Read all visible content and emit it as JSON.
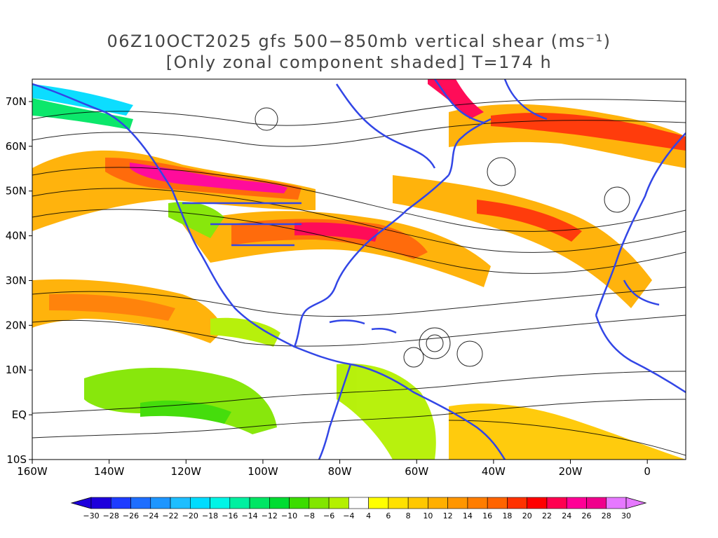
{
  "title": {
    "line1": "06Z10OCT2025 gfs 500−850mb vertical shear (ms⁻¹)",
    "line2": "[Only zonal component shaded] T=174 h"
  },
  "axes": {
    "x_ticks": [
      "160W",
      "140W",
      "120W",
      "100W",
      "80W",
      "60W",
      "40W",
      "20W",
      "0"
    ],
    "y_ticks": [
      "70N",
      "60N",
      "50N",
      "40N",
      "30N",
      "20N",
      "10N",
      "EQ",
      "10S"
    ]
  },
  "map_extent": {
    "lon_min": -160,
    "lon_max": 10,
    "lat_min": -10,
    "lat_max": 75
  },
  "colorbar": {
    "labels": [
      "−30",
      "−28",
      "−26",
      "−24",
      "−22",
      "−20",
      "−18",
      "−16",
      "−14",
      "−12",
      "−10",
      "−8",
      "−6",
      "−4",
      "4",
      "6",
      "8",
      "10",
      "12",
      "14",
      "16",
      "18",
      "20",
      "22",
      "24",
      "26",
      "28",
      "30"
    ],
    "colors": [
      "#1e00dc",
      "#1e3cff",
      "#1e6eff",
      "#1e96ff",
      "#1ebeff",
      "#00dcff",
      "#00f5e6",
      "#00f0a0",
      "#00e664",
      "#00dc32",
      "#3cdc00",
      "#82e600",
      "#b4f000",
      "#ffffff",
      "#ffff00",
      "#ffe100",
      "#ffc800",
      "#ffaf00",
      "#ff9600",
      "#ff7d00",
      "#ff6400",
      "#ff3200",
      "#ff0000",
      "#ff0050",
      "#ff0096",
      "#f0008c",
      "#e678ff"
    ],
    "min_color": "#1e00dc",
    "max_color": "#e678ff"
  },
  "colors": {
    "coastline": "#3246e6",
    "streamline": "#000000",
    "frame": "#000000"
  }
}
